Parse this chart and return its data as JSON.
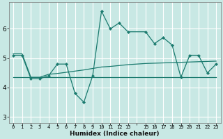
{
  "xlabel": "Humidex (Indice chaleur)",
  "bg_color": "#c8e8e4",
  "grid_color": "#ffffff",
  "line_color": "#1a7a6e",
  "x_tick_labels": [
    "0",
    "1",
    "2",
    "3",
    "4",
    "5",
    "6",
    "7",
    "8",
    "9",
    "10",
    "11",
    "12",
    "13",
    "",
    "15",
    "16",
    "17",
    "18",
    "19",
    "20",
    "21",
    "22",
    "23"
  ],
  "x_tick_pos": [
    0,
    1,
    2,
    3,
    4,
    5,
    6,
    7,
    8,
    9,
    10,
    11,
    12,
    13,
    14,
    15,
    16,
    17,
    18,
    19,
    20,
    21,
    22,
    23
  ],
  "ylim": [
    2.8,
    6.9
  ],
  "xlim": [
    -0.5,
    23.5
  ],
  "yticks": [
    3,
    4,
    5,
    6
  ],
  "series1_x": [
    0,
    1,
    2,
    3,
    4,
    5,
    6,
    7,
    8,
    9,
    10,
    11,
    12,
    13,
    15,
    16,
    17,
    18,
    19,
    20,
    21,
    22,
    23
  ],
  "series1_y": [
    5.1,
    5.1,
    4.3,
    4.3,
    4.4,
    4.8,
    4.8,
    3.8,
    3.5,
    4.4,
    6.6,
    6.0,
    6.2,
    5.9,
    5.9,
    5.5,
    5.7,
    5.45,
    4.35,
    5.1,
    5.1,
    4.5,
    4.8
  ],
  "series2_x": [
    0,
    1,
    2,
    3,
    4,
    5,
    6,
    7,
    8,
    9,
    10,
    11,
    12,
    13,
    14,
    15,
    16,
    17,
    18,
    19,
    20,
    21,
    22,
    23
  ],
  "series2_y": [
    5.15,
    5.15,
    4.35,
    4.35,
    4.45,
    4.48,
    4.52,
    4.56,
    4.6,
    4.65,
    4.7,
    4.72,
    4.75,
    4.78,
    4.8,
    4.82,
    4.83,
    4.84,
    4.85,
    4.86,
    4.87,
    4.88,
    4.89,
    4.9
  ],
  "series3_x": [
    0,
    23
  ],
  "series3_y": [
    4.35,
    4.35
  ]
}
